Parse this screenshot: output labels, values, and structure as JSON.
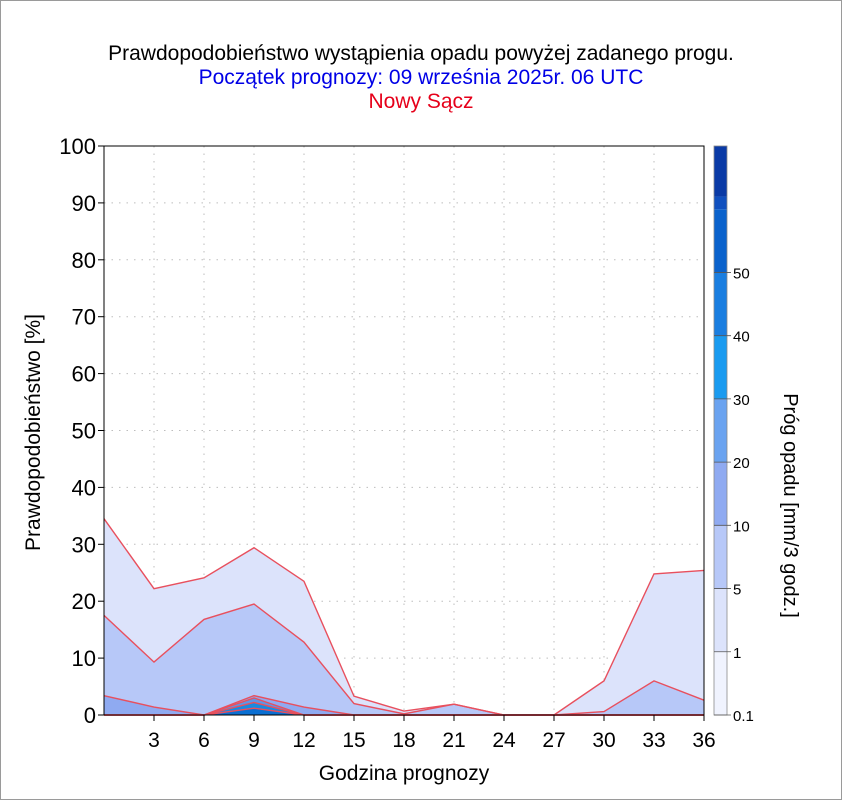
{
  "title": "Prawdopodobieństwo wystąpienia opadu powyżej zadanego progu.",
  "subtitle": "Początek prognozy: 09 września 2025r. 06 UTC",
  "station": "Nowy Sącz",
  "colors": {
    "title": "#000000",
    "subtitle": "#0000e6",
    "station": "#e6001a",
    "outline": "#e8505e",
    "grid": "#bdbdbd"
  },
  "chart_data": {
    "type": "area",
    "xlabel": "Godzina prognozy",
    "ylabel": "Prawdopodobieństwo [%]",
    "colorbar_label": "Próg opadu [mm/3 godz.]",
    "x": [
      0,
      3,
      6,
      9,
      12,
      15,
      18,
      21,
      24,
      27,
      30,
      33,
      36
    ],
    "xlim": [
      0,
      36
    ],
    "ylim": [
      0,
      100
    ],
    "xticks": [
      3,
      6,
      9,
      12,
      15,
      18,
      21,
      24,
      27,
      30,
      33,
      36
    ],
    "yticks": [
      0,
      10,
      20,
      30,
      40,
      50,
      60,
      70,
      80,
      90,
      100
    ],
    "grid": true,
    "series": [
      {
        "name": "0.1",
        "color": "#dce3fb",
        "values": [
          34.5,
          22.2,
          24.1,
          29.4,
          23.5,
          3.3,
          0.7,
          1.9,
          0,
          0,
          6.0,
          24.8,
          25.4
        ]
      },
      {
        "name": "1",
        "color": "#b7c8f8",
        "values": [
          17.5,
          9.3,
          16.8,
          19.5,
          12.8,
          2.0,
          0.2,
          1.9,
          0,
          0,
          0.6,
          6.0,
          2.6
        ]
      },
      {
        "name": "5",
        "color": "#8faaf1",
        "values": [
          3.4,
          1.4,
          0,
          3.4,
          1.4,
          0,
          0,
          0,
          0,
          0,
          0,
          0,
          0
        ]
      },
      {
        "name": "10",
        "color": "#5f95e6",
        "values": [
          0,
          0,
          0,
          3.0,
          0,
          0,
          0,
          0,
          0,
          0,
          0,
          0,
          0
        ]
      },
      {
        "name": "20",
        "color": "#1a8ae0",
        "values": [
          0,
          0,
          0,
          2.2,
          0,
          0,
          0,
          0,
          0,
          0,
          0,
          0,
          0
        ]
      },
      {
        "name": "30",
        "color": "#0a6fd2",
        "values": [
          0,
          0,
          0,
          1.2,
          0,
          0,
          0,
          0,
          0,
          0,
          0,
          0,
          0
        ]
      }
    ],
    "colorbar": {
      "levels": [
        "0.1",
        "1",
        "5",
        "10",
        "20",
        "30",
        "40",
        "50"
      ],
      "bands": [
        {
          "from": 0,
          "to": 1,
          "color": "#f0f3fe"
        },
        {
          "from": 1,
          "to": 2,
          "color": "#dce3fb"
        },
        {
          "from": 2,
          "to": 3,
          "color": "#b7c8f8"
        },
        {
          "from": 3,
          "to": 4,
          "color": "#8faaf1"
        },
        {
          "from": 4,
          "to": 5,
          "color": "#6aa3f0"
        },
        {
          "from": 5,
          "to": 6,
          "color": "#1a9bf0"
        },
        {
          "from": 6,
          "to": 7,
          "color": "#1a7ee0"
        },
        {
          "from": 7,
          "to": 8,
          "color": "#0a62cc"
        },
        {
          "from": 8,
          "to": 8.2,
          "color": "#1050bf"
        },
        {
          "from": 8.2,
          "to": 9,
          "color": "#0a3aa6"
        }
      ]
    }
  }
}
